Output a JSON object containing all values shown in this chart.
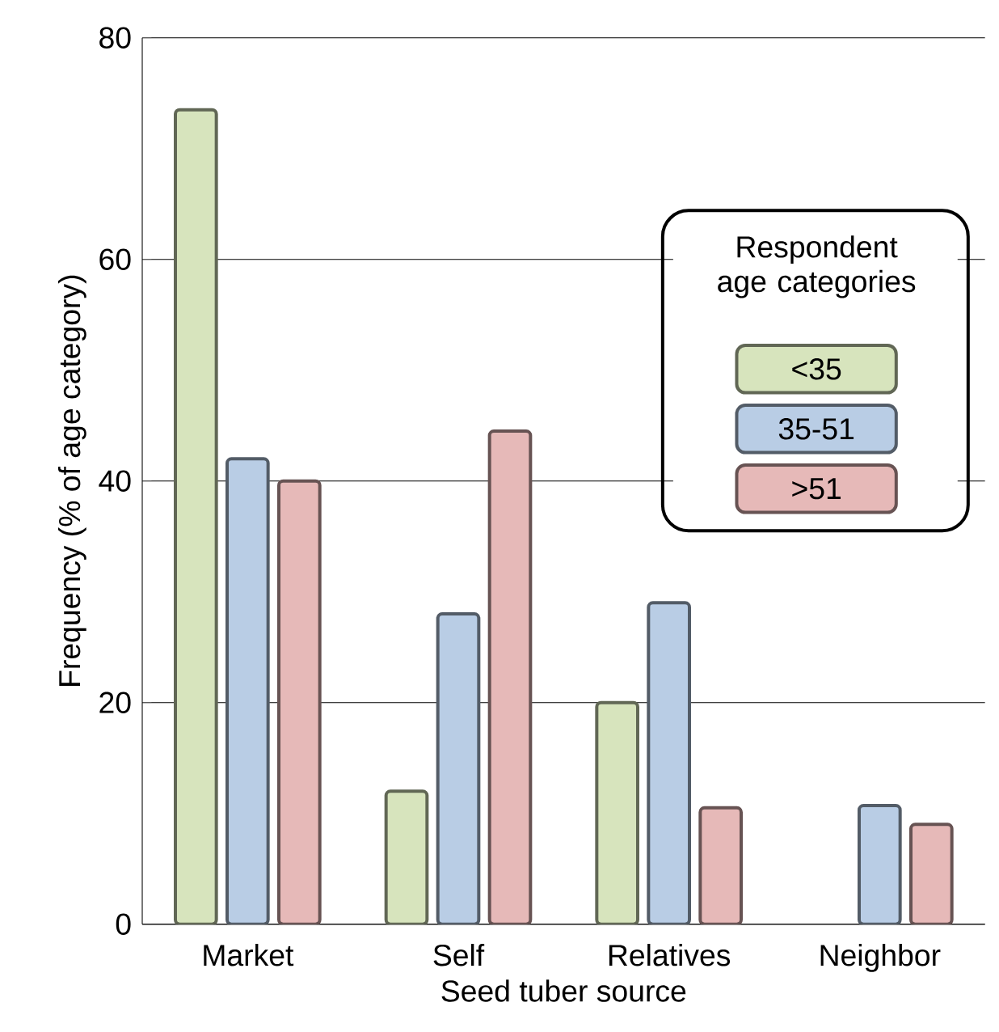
{
  "chart_data": {
    "type": "bar",
    "xlabel": "Seed tuber source",
    "ylabel": "Frequency (% of age category)",
    "legend_title": "Respondent age categories",
    "categories": [
      "Market",
      "Self",
      "Relatives",
      "Neighbor"
    ],
    "series": [
      {
        "name": "<35",
        "color": "#d7e4bd",
        "values": [
          73.5,
          12,
          20,
          null
        ]
      },
      {
        "name": "35-51",
        "color": "#b9cde5",
        "values": [
          42,
          28,
          29,
          10.7
        ]
      },
      {
        "name": ">51",
        "color": "#e6b9b8",
        "values": [
          40,
          44.5,
          10.5,
          9
        ]
      }
    ],
    "ylim": [
      0,
      80
    ],
    "yticks": [
      0,
      20,
      40,
      60,
      80
    ],
    "grid": "y",
    "legend": "right"
  }
}
